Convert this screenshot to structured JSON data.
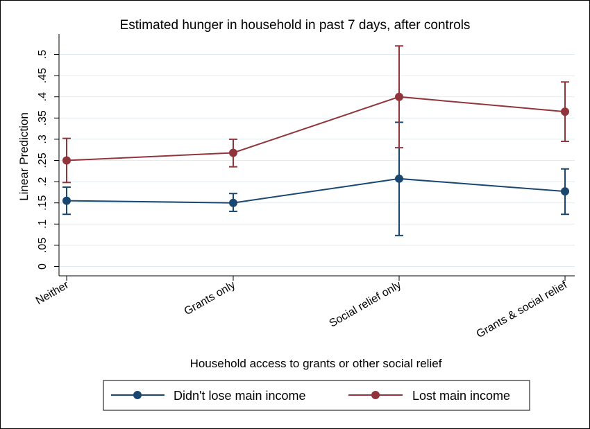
{
  "chart_data": {
    "type": "line",
    "title": "Estimated hunger in household in past 7 days, after controls",
    "xlabel": "Household access to grants or other social relief",
    "ylabel": "Linear Prediction",
    "categories": [
      "Neither",
      "Grants only",
      "Social relief only",
      "Grants & social relief"
    ],
    "y_ticks": [
      "0",
      ".05",
      ".1",
      ".15",
      ".2",
      ".25",
      ".3",
      ".35",
      ".4",
      ".45",
      ".5"
    ],
    "y_tick_values": [
      0,
      0.05,
      0.1,
      0.15,
      0.2,
      0.25,
      0.3,
      0.35,
      0.4,
      0.45,
      0.5
    ],
    "ylim": [
      -0.02,
      0.53
    ],
    "grid": true,
    "legend_position": "bottom",
    "series": [
      {
        "name": "Didn't lose main income",
        "color": "#1a476f",
        "values": [
          0.155,
          0.15,
          0.207,
          0.177
        ],
        "ci_lower": [
          0.123,
          0.13,
          0.073,
          0.123
        ],
        "ci_upper": [
          0.187,
          0.172,
          0.34,
          0.23
        ]
      },
      {
        "name": "Lost main income",
        "color": "#90353b",
        "values": [
          0.25,
          0.268,
          0.4,
          0.365
        ],
        "ci_lower": [
          0.198,
          0.235,
          0.28,
          0.295
        ],
        "ci_upper": [
          0.302,
          0.3,
          0.52,
          0.435
        ]
      }
    ]
  }
}
